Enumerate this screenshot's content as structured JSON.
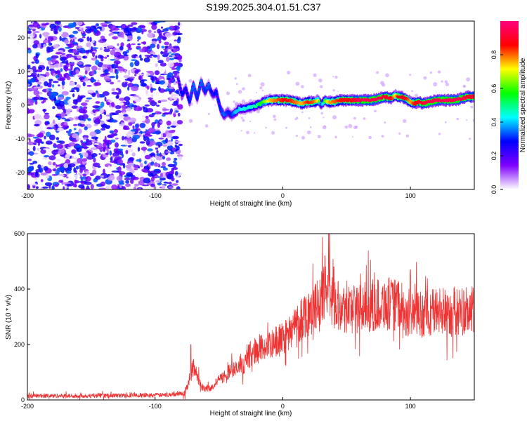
{
  "page_title": "S199.2025.304.01.51.C37",
  "chart_data": [
    {
      "type": "heatmap",
      "title": "S199.2025.304.01.51.C37",
      "xlabel": "Height of straight line (km)",
      "ylabel": "Frequency (Hz)",
      "xlim": [
        -200,
        150
      ],
      "ylim": [
        -25,
        25
      ],
      "x_ticks": [
        -200,
        -100,
        0,
        100
      ],
      "y_ticks": [
        -20,
        -10,
        0,
        10,
        20
      ],
      "noise_region_x": [
        -200,
        -80
      ],
      "signal_trace": {
        "x": [
          -82,
          -79,
          -76,
          -73,
          -70,
          -67,
          -64,
          -61,
          -58,
          -55,
          -52,
          -49,
          -46,
          -43,
          -40,
          -37,
          -34,
          -30,
          -25,
          -20,
          -15,
          -10,
          -5,
          0,
          5,
          10,
          15,
          20,
          25,
          28,
          30,
          33,
          36,
          40,
          45,
          50,
          55,
          60,
          65,
          70,
          75,
          80,
          85,
          88,
          90,
          93,
          96,
          100,
          103,
          106,
          110,
          115,
          120,
          125,
          130,
          135,
          140,
          145,
          150
        ],
        "y": [
          8,
          3,
          5,
          1,
          6,
          2,
          7,
          4,
          6,
          3,
          4,
          -1,
          -3,
          -2,
          -3,
          -2,
          -1,
          -1,
          -0.5,
          0,
          1,
          1.5,
          1.5,
          1.5,
          1.5,
          1,
          0.5,
          1,
          1,
          1.5,
          0,
          1.5,
          1,
          1,
          1.5,
          1.5,
          1.5,
          1.5,
          1.5,
          1.5,
          2,
          2.5,
          2,
          3,
          2.5,
          2.5,
          2,
          1,
          0.5,
          1,
          0.5,
          1,
          1.5,
          1.5,
          1.5,
          1.5,
          2,
          2.5,
          2.5
        ],
        "amplitude": [
          0.2,
          0.3,
          0.25,
          0.3,
          0.35,
          0.3,
          0.35,
          0.3,
          0.35,
          0.25,
          0.3,
          0.3,
          0.35,
          0.3,
          0.3,
          0.4,
          0.4,
          0.45,
          0.45,
          0.5,
          0.6,
          0.75,
          0.8,
          0.85,
          0.85,
          0.8,
          0.75,
          0.85,
          0.8,
          0.7,
          0.3,
          0.6,
          0.75,
          0.8,
          0.85,
          0.85,
          0.9,
          0.95,
          0.95,
          0.95,
          0.95,
          0.9,
          0.9,
          0.7,
          0.85,
          0.9,
          0.9,
          0.75,
          0.85,
          0.9,
          0.9,
          0.95,
          0.95,
          0.95,
          0.95,
          0.95,
          0.95,
          0.9,
          0.9
        ]
      },
      "colorbar": {
        "label": "Normalized spectral amplitude",
        "range": [
          0,
          1
        ],
        "ticks": [
          "0.0",
          "0.2",
          "0.4",
          "0.6",
          "0.8"
        ],
        "colors": [
          "#ffffff",
          "#7f00ff",
          "#0000ff",
          "#00ffff",
          "#00ff00",
          "#ffff00",
          "#ff0000",
          "#ff007f"
        ]
      }
    },
    {
      "type": "line",
      "xlabel": "Height of straight line (km)",
      "ylabel": "SNR (10 * v/v)",
      "xlim": [
        -200,
        150
      ],
      "ylim": [
        0,
        600
      ],
      "x_ticks": [
        -200,
        -100,
        0,
        100
      ],
      "y_ticks": [
        0,
        200,
        400,
        600
      ],
      "color": "#ee3333",
      "series": [
        {
          "name": "SNR",
          "x": [
            -200,
            -150,
            -90,
            -77,
            -72,
            -70,
            -67,
            -64,
            -60,
            -55,
            -50,
            -45,
            -40,
            -35,
            -30,
            -25,
            -20,
            -15,
            -10,
            -5,
            0,
            5,
            10,
            15,
            20,
            25,
            30,
            35,
            40,
            45,
            50,
            60,
            70,
            80,
            90,
            100,
            110,
            120,
            130,
            140,
            150
          ],
          "values": [
            15,
            15,
            18,
            25,
            80,
            120,
            90,
            50,
            40,
            50,
            70,
            90,
            110,
            110,
            130,
            170,
            180,
            190,
            190,
            210,
            220,
            250,
            270,
            300,
            320,
            330,
            360,
            400,
            360,
            340,
            330,
            330,
            340,
            350,
            340,
            310,
            310,
            320,
            320,
            320,
            320
          ],
          "spikes": [
            {
              "x": -72,
              "y": 200
            },
            {
              "x": 36,
              "y": 600
            },
            {
              "x": 33,
              "y": 520
            },
            {
              "x": 40,
              "y": 480
            },
            {
              "x": 100,
              "y": 470
            },
            {
              "x": 90,
              "y": 420
            }
          ]
        }
      ]
    }
  ]
}
